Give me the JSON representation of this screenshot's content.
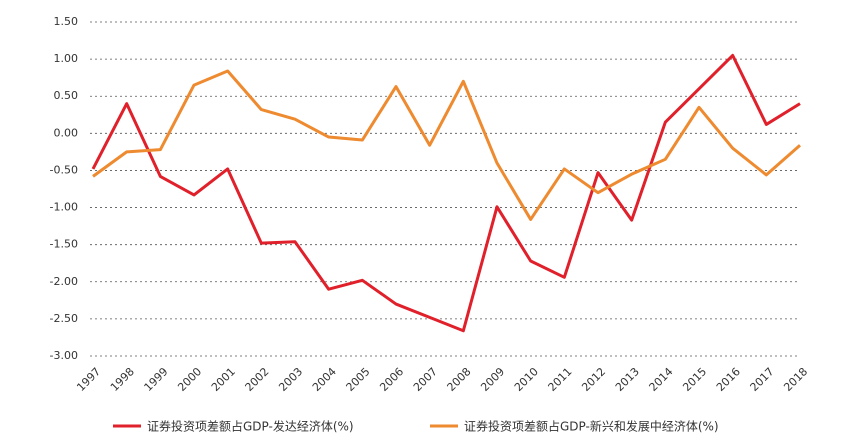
{
  "chart_data": {
    "type": "line",
    "categories": [
      "1997",
      "1998",
      "1999",
      "2000",
      "2001",
      "2002",
      "2003",
      "2004",
      "2005",
      "2006",
      "2007",
      "2008",
      "2009",
      "2010",
      "2011",
      "2012",
      "2013",
      "2014",
      "2015",
      "2016",
      "2017",
      "2018"
    ],
    "series": [
      {
        "name": "证券投资项差额占GDP-发达经济体(%)",
        "color": "#e0202a",
        "values": [
          -0.48,
          0.4,
          -0.58,
          -0.83,
          -0.48,
          -1.48,
          -1.46,
          -2.1,
          -1.98,
          -2.3,
          -2.48,
          -2.66,
          -0.99,
          -1.72,
          -1.94,
          -0.53,
          -1.17,
          0.15,
          0.6,
          1.05,
          0.12,
          0.4
        ]
      },
      {
        "name": "证券投资项差额占GDP-新兴和发展中经济体(%)",
        "color": "#ee8a2f",
        "values": [
          -0.58,
          -0.25,
          -0.22,
          0.65,
          0.84,
          0.32,
          0.19,
          -0.05,
          -0.09,
          0.63,
          -0.16,
          0.7,
          -0.4,
          -1.16,
          -0.48,
          -0.8,
          -0.55,
          -0.35,
          0.35,
          -0.2,
          -0.56,
          -0.16
        ]
      }
    ],
    "ylim": [
      -3.0,
      1.5
    ],
    "yticks": [
      {
        "value": -3.0,
        "label": "-3.00"
      },
      {
        "value": -2.5,
        "label": "-2.50"
      },
      {
        "value": -2.0,
        "label": "-2.00"
      },
      {
        "value": -1.5,
        "label": "-1.50"
      },
      {
        "value": -1.0,
        "label": "-1.00"
      },
      {
        "value": -0.5,
        "label": "-0.50"
      },
      {
        "value": 0,
        "label": "0.00"
      },
      {
        "value": 0.5,
        "label": "0.50"
      },
      {
        "value": 1.0,
        "label": "1.00"
      },
      {
        "value": 1.5,
        "label": "1.50"
      }
    ],
    "grid": true
  }
}
